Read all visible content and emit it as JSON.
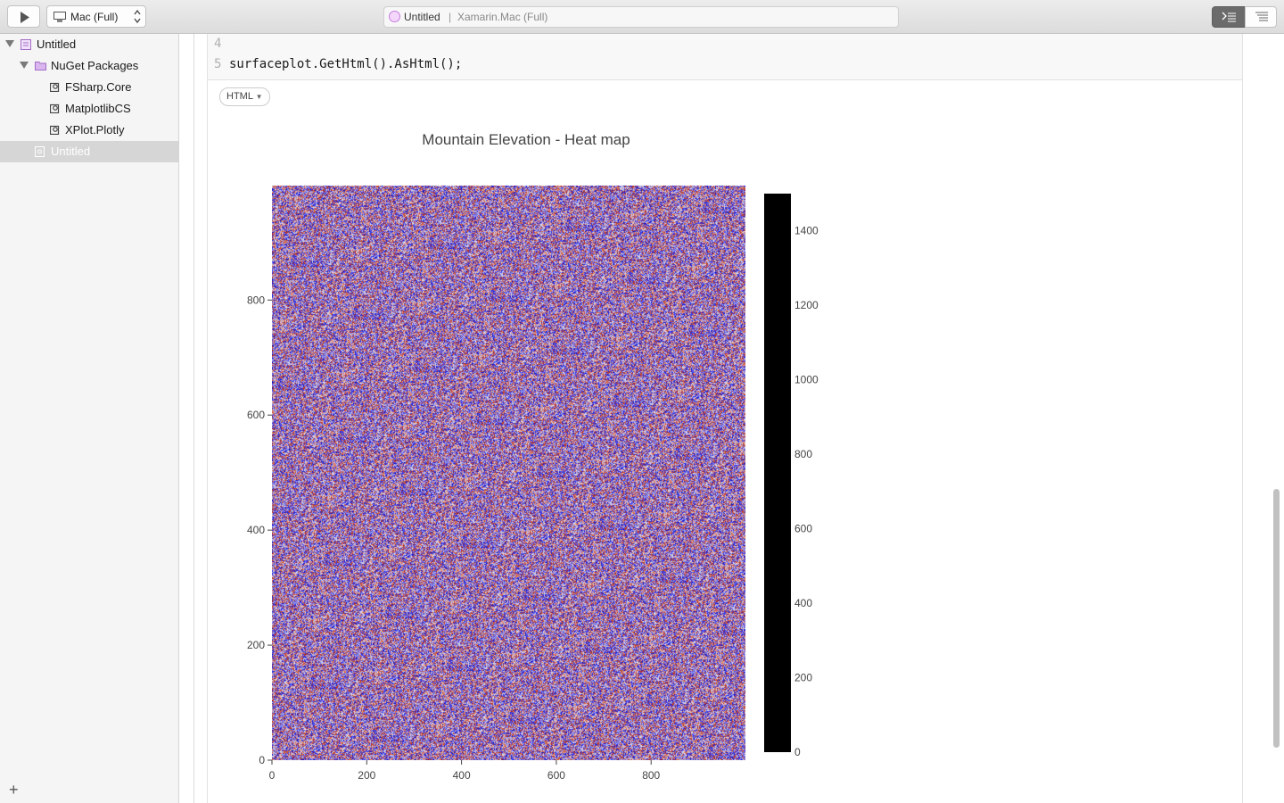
{
  "toolbar": {
    "run_button": "play-icon",
    "target": "Mac (Full)",
    "document_title": "Untitled",
    "separator": "|",
    "environment": "Xamarin.Mac (Full)"
  },
  "sidebar": {
    "items": [
      {
        "label": "Untitled",
        "level": 0,
        "expanded": true,
        "icon": "workbook-icon"
      },
      {
        "label": "NuGet Packages",
        "level": 1,
        "expanded": true,
        "icon": "packages-folder-icon"
      },
      {
        "label": "FSharp.Core",
        "level": 2,
        "icon": "package-icon"
      },
      {
        "label": "MatplotlibCS",
        "level": 2,
        "icon": "package-icon"
      },
      {
        "label": "XPlot.Plotly",
        "level": 2,
        "icon": "package-icon"
      },
      {
        "label": "Untitled",
        "level": 1,
        "selected": true,
        "icon": "document-icon"
      }
    ],
    "add_button": "+"
  },
  "editor": {
    "lines": [
      {
        "number": "4",
        "text": ""
      },
      {
        "number": "5",
        "text": "surfaceplot.GetHtml().AsHtml();"
      }
    ],
    "output_format": "HTML"
  },
  "chart_data": {
    "type": "heatmap",
    "title": "Mountain Elevation - Heat map",
    "x_ticks": [
      0,
      200,
      400,
      600,
      800
    ],
    "y_ticks": [
      0,
      200,
      400,
      600,
      800
    ],
    "xlim": [
      0,
      999
    ],
    "ylim": [
      0,
      999
    ],
    "colorbar": {
      "ticks": [
        0,
        200,
        400,
        600,
        800,
        1000,
        1200,
        1400
      ],
      "range": [
        0,
        1500
      ],
      "color": "#000000"
    },
    "colors": [
      "#1a1ac8",
      "#3d3df0",
      "#7a7ae6",
      "#b4b4ea",
      "#e0d8e6",
      "#e8a08a",
      "#d8603a",
      "#b0302a"
    ],
    "grid": false
  }
}
